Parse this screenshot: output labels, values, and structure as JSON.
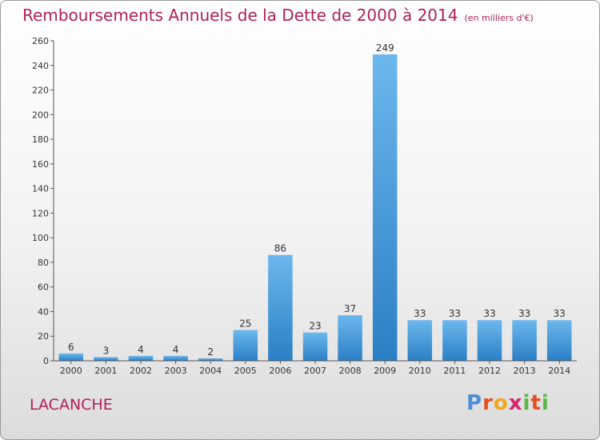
{
  "header": {
    "title": "Remboursements Annuels de la Dette de 2000 à 2014",
    "unit": "(en milliers d'€)"
  },
  "footer": {
    "place": "LACANCHE",
    "logo_letters": [
      "P",
      "r",
      "o",
      "x",
      "i",
      "t",
      "i"
    ],
    "logo_colors": [
      "#4a8fd6",
      "#e84e1b",
      "#f2a51a",
      "#d6246e",
      "#5ab946",
      "#e84e1b",
      "#5ab946"
    ]
  },
  "chart_data": {
    "type": "bar",
    "title": "Remboursements Annuels de la Dette de 2000 à 2014",
    "subtitle": "(en milliers d'€)",
    "categories": [
      "2000",
      "2001",
      "2002",
      "2003",
      "2004",
      "2005",
      "2006",
      "2007",
      "2008",
      "2009",
      "2010",
      "2011",
      "2012",
      "2013",
      "2014"
    ],
    "values": [
      6,
      3,
      4,
      4,
      2,
      25,
      86,
      23,
      37,
      249,
      33,
      33,
      33,
      33,
      33
    ],
    "ylim": [
      0,
      260
    ],
    "yticks": [
      0,
      20,
      40,
      60,
      80,
      100,
      120,
      140,
      160,
      180,
      200,
      220,
      240,
      260
    ],
    "grid": false,
    "legend": "none",
    "colors": {
      "bar_light": "#6cb8ee",
      "bar_dark": "#2b7fc4",
      "axis": "#555555"
    }
  }
}
